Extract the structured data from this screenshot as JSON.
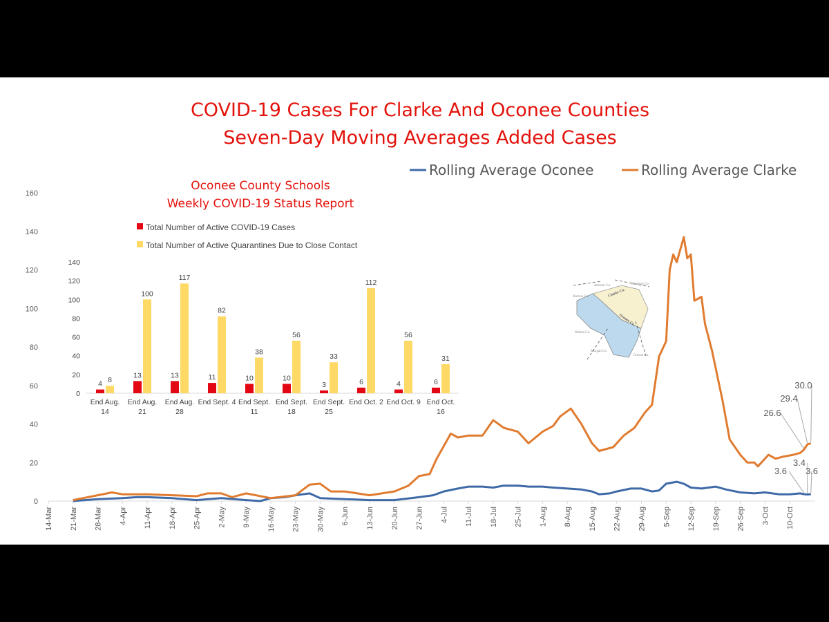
{
  "chart_data": [
    {
      "type": "line",
      "title": "COVID-19 Cases For Clarke And Oconee Counties",
      "subtitle": "Seven-Day Moving Averages Added Cases",
      "legend_position": "top-right",
      "ylim": [
        0,
        160
      ],
      "yticks": [
        0,
        20,
        40,
        60,
        80,
        100,
        120,
        140,
        160
      ],
      "xticks": [
        "14-Mar",
        "21-Mar",
        "28-Mar",
        "4-Apr",
        "11-Apr",
        "18-Apr",
        "25-Apr",
        "2-May",
        "9-May",
        "16-May",
        "23-May",
        "30-May",
        "6-Jun",
        "13-Jun",
        "20-Jun",
        "27-Jun",
        "4-Jul",
        "11-Jul",
        "18-Jul",
        "25-Jul",
        "1-Aug",
        "8-Aug",
        "15-Aug",
        "22-Aug",
        "29-Aug",
        "5-Sep",
        "12-Sep",
        "19-Sep",
        "26-Sep",
        "3-Oct",
        "10-Oct"
      ],
      "grid": false,
      "series": [
        {
          "name": "Rolling Average Oconee",
          "color": "#3e6aa8",
          "x": [
            "21-Mar",
            "28-Mar",
            "4-Apr",
            "8-Apr",
            "11-Apr",
            "18-Apr",
            "25-Apr",
            "2-May",
            "9-May",
            "13-May",
            "16-May",
            "20-May",
            "23-May",
            "27-May",
            "30-May",
            "6-Jun",
            "13-Jun",
            "20-Jun",
            "27-Jun",
            "1-Jul",
            "4-Jul",
            "8-Jul",
            "11-Jul",
            "15-Jul",
            "18-Jul",
            "21-Jul",
            "25-Jul",
            "28-Jul",
            "1-Aug",
            "4-Aug",
            "8-Aug",
            "12-Aug",
            "15-Aug",
            "17-Aug",
            "20-Aug",
            "22-Aug",
            "26-Aug",
            "29-Aug",
            "1-Sep",
            "3-Sep",
            "5-Sep",
            "8-Sep",
            "10-Sep",
            "12-Sep",
            "15-Sep",
            "19-Sep",
            "22-Sep",
            "26-Sep",
            "30-Sep",
            "3-Oct",
            "7-Oct",
            "10-Oct",
            "13-Oct",
            "14-Oct",
            "15-Oct",
            "16-Oct"
          ],
          "y": [
            0,
            1,
            1.5,
            2,
            2,
            1.5,
            0.5,
            1.5,
            0.5,
            0,
            1.5,
            2,
            3,
            4,
            1.5,
            1,
            0.5,
            0.5,
            2,
            3,
            5,
            6.5,
            7.5,
            7.5,
            7,
            8,
            8,
            7.5,
            7.5,
            7,
            6.5,
            6,
            5,
            3.5,
            4,
            5,
            6.5,
            6.5,
            5,
            5.5,
            9,
            10,
            9,
            7,
            6.5,
            7.5,
            6,
            4.5,
            4,
            4.5,
            3.5,
            3.5,
            4,
            3.6,
            3.4,
            3.6
          ]
        },
        {
          "name": "Rolling Average Clarke",
          "color": "#e07b2f",
          "x": [
            "21-Mar",
            "28-Mar",
            "1-Apr",
            "4-Apr",
            "11-Apr",
            "18-Apr",
            "25-Apr",
            "28-Apr",
            "2-May",
            "5-May",
            "9-May",
            "16-May",
            "23-May",
            "27-May",
            "30-May",
            "2-Jun",
            "6-Jun",
            "13-Jun",
            "20-Jun",
            "24-Jun",
            "27-Jun",
            "30-Jun",
            "2-Jul",
            "6-Jul",
            "8-Jul",
            "11-Jul",
            "15-Jul",
            "18-Jul",
            "21-Jul",
            "25-Jul",
            "28-Jul",
            "1-Aug",
            "4-Aug",
            "6-Aug",
            "9-Aug",
            "12-Aug",
            "15-Aug",
            "17-Aug",
            "21-Aug",
            "24-Aug",
            "27-Aug",
            "30-Aug",
            "1-Sep",
            "3-Sep",
            "5-Sep",
            "6-Sep",
            "7-Sep",
            "8-Sep",
            "10-Sep",
            "11-Sep",
            "12-Sep",
            "13-Sep",
            "15-Sep",
            "16-Sep",
            "18-Sep",
            "21-Sep",
            "23-Sep",
            "26-Sep",
            "28-Sep",
            "30-Sep",
            "1-Oct",
            "4-Oct",
            "6-Oct",
            "8-Oct",
            "11-Oct",
            "13-Oct",
            "14-Oct",
            "15-Oct",
            "16-Oct"
          ],
          "y": [
            0.5,
            3,
            4.5,
            3.5,
            3.5,
            3,
            2.5,
            4,
            4,
            2,
            4,
            1.5,
            3,
            8.5,
            9,
            5,
            5,
            3,
            5,
            8,
            13,
            14,
            22,
            35,
            33,
            34,
            34,
            42,
            38,
            36,
            30,
            36,
            39,
            44,
            48,
            40,
            30,
            26,
            28,
            34,
            38,
            46,
            50,
            75,
            83,
            120,
            128,
            124,
            137,
            126,
            128,
            104,
            106,
            92,
            78,
            52,
            32,
            24,
            20,
            20,
            18,
            24,
            22,
            23,
            24,
            25,
            26.6,
            29.4,
            30.0
          ]
        }
      ],
      "annotations": [
        {
          "series": "Rolling Average Clarke",
          "x": "14-Oct",
          "label": "26.6"
        },
        {
          "series": "Rolling Average Clarke",
          "x": "15-Oct",
          "label": "29.4"
        },
        {
          "series": "Rolling Average Clarke",
          "x": "16-Oct",
          "label": "30.0"
        },
        {
          "series": "Rolling Average Oconee",
          "x": "14-Oct",
          "label": "3.6"
        },
        {
          "series": "Rolling Average Oconee",
          "x": "15-Oct",
          "label": "3.4"
        },
        {
          "series": "Rolling Average Oconee",
          "x": "16-Oct",
          "label": "3.6"
        }
      ]
    },
    {
      "type": "bar",
      "title": "Oconee County Schools",
      "subtitle": "Weekly COVID-19 Status Report",
      "legend_position": "top",
      "ylim": [
        0,
        140
      ],
      "yticks": [
        0,
        20,
        40,
        60,
        80,
        100,
        120,
        140
      ],
      "categories": [
        [
          "End Aug.",
          "14"
        ],
        [
          "End Aug.",
          "21"
        ],
        [
          "End Aug.",
          "28"
        ],
        [
          "End Sept. 4",
          ""
        ],
        [
          "End Sept.",
          "11"
        ],
        [
          "End Sept.",
          "18"
        ],
        [
          "End Sept.",
          "25"
        ],
        [
          "End Oct. 2",
          ""
        ],
        [
          "End Oct. 9",
          ""
        ],
        [
          "End Oct.",
          "16"
        ]
      ],
      "series": [
        {
          "name": "Total Number of Active COVID-19 Cases",
          "color": "#e30613",
          "values": [
            4,
            13,
            13,
            11,
            10,
            10,
            3,
            6,
            4,
            6
          ]
        },
        {
          "name": "Total Number of Active Quarantines Due to Close Contact",
          "color": "#ffd966",
          "values": [
            8,
            100,
            117,
            82,
            38,
            56,
            33,
            112,
            56,
            31
          ]
        }
      ]
    }
  ],
  "map_image": {
    "labels": [
      "Jackson Co.",
      "Madison Co.",
      "Barrow Co.",
      "Clarke Co.",
      "Oconee Co.",
      "Walton Co.",
      "Morgan Co.",
      "Greene Co."
    ]
  }
}
